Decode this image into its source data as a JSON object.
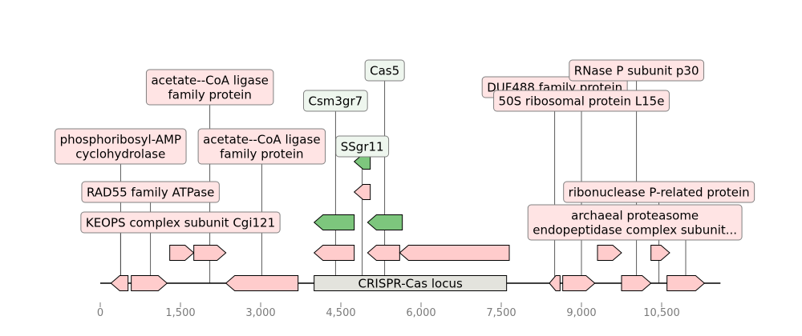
{
  "chart_data": {
    "type": "gene-map",
    "title": "",
    "axis": {
      "min": 0,
      "max": 11600,
      "ticks": [
        0,
        1500,
        3000,
        4500,
        6000,
        7500,
        9000,
        10500
      ],
      "tick_labels": [
        "0",
        "1,500",
        "3,000",
        "4,500",
        "6,000",
        "7,500",
        "9,000",
        "10,500"
      ]
    },
    "colors": {
      "gene_pink": "#ffcccc",
      "gene_green": "#7dc67d",
      "label_pink": "#ffe4e4",
      "label_green": "#eef6ee",
      "locus_box": "#e3e3dd"
    },
    "locus": {
      "label": "CRISPR-Cas locus",
      "start": 4000,
      "end": 7600
    },
    "genes": [
      {
        "start": 200,
        "end": 520,
        "strand": -1,
        "track": 0,
        "color": "pink"
      },
      {
        "start": 580,
        "end": 1250,
        "strand": 1,
        "track": 0,
        "color": "pink"
      },
      {
        "start": 2350,
        "end": 3700,
        "strand": -1,
        "track": 0,
        "color": "pink"
      },
      {
        "start": 8400,
        "end": 8600,
        "strand": -1,
        "track": 0,
        "color": "pink"
      },
      {
        "start": 8650,
        "end": 9250,
        "strand": 1,
        "track": 0,
        "color": "pink"
      },
      {
        "start": 9750,
        "end": 10300,
        "strand": 1,
        "track": 0,
        "color": "pink"
      },
      {
        "start": 10600,
        "end": 11300,
        "strand": 1,
        "track": 0,
        "color": "pink"
      },
      {
        "start": 1300,
        "end": 1750,
        "strand": 1,
        "track": 1,
        "color": "pink"
      },
      {
        "start": 1750,
        "end": 2350,
        "strand": 1,
        "track": 1,
        "color": "pink"
      },
      {
        "start": 4000,
        "end": 4750,
        "strand": -1,
        "track": 1,
        "color": "pink"
      },
      {
        "start": 5000,
        "end": 5600,
        "strand": -1,
        "track": 1,
        "color": "pink"
      },
      {
        "start": 5600,
        "end": 7650,
        "strand": -1,
        "track": 1,
        "color": "pink"
      },
      {
        "start": 9300,
        "end": 9750,
        "strand": 1,
        "track": 1,
        "color": "pink"
      },
      {
        "start": 10300,
        "end": 10650,
        "strand": 1,
        "track": 1,
        "color": "pink"
      },
      {
        "start": 4000,
        "end": 4750,
        "strand": -1,
        "track": 2,
        "color": "green"
      },
      {
        "start": 5000,
        "end": 5650,
        "strand": -1,
        "track": 2,
        "color": "green"
      },
      {
        "start": 4750,
        "end": 5050,
        "strand": -1,
        "track": 3,
        "color": "pink"
      },
      {
        "start": 4750,
        "end": 5050,
        "strand": -1,
        "track": 4,
        "color": "green"
      }
    ],
    "annotations": [
      {
        "text": "KEOPS complex subunit Cgi121",
        "x": 380,
        "box_center": 1500,
        "level": 0,
        "color": "pink"
      },
      {
        "text": "RAD55 family ATPase",
        "x": 940,
        "box_center": 940,
        "level": 1,
        "color": "pink"
      },
      {
        "text": "phosphoribosyl-AMP\ncyclohydrolase",
        "x": 380,
        "box_center": 380,
        "level": 2,
        "color": "pink"
      },
      {
        "text": "acetate--CoA ligase\nfamily protein",
        "x": 3020,
        "box_center": 3020,
        "level": 2,
        "color": "pink"
      },
      {
        "text": "acetate--CoA ligase\nfamily protein",
        "x": 2050,
        "box_center": 2050,
        "level": 4,
        "color": "pink"
      },
      {
        "text": "Csm3gr7",
        "x": 4400,
        "box_center": 4400,
        "level": 3,
        "color": "green"
      },
      {
        "text": "SSgr11",
        "x": 4900,
        "box_center": 4900,
        "level": 2,
        "color": "green"
      },
      {
        "text": "Cas5",
        "x": 5320,
        "box_center": 5320,
        "level": 5,
        "color": "green"
      },
      {
        "text": "DUF488 family protein",
        "x": 8500,
        "box_center": 8500,
        "level": 4,
        "color": "pink"
      },
      {
        "text": "50S ribosomal protein L15e",
        "x": 9000,
        "box_center": 9000,
        "level": 3,
        "color": "pink"
      },
      {
        "text": "RNase P subunit p30",
        "x": 10030,
        "box_center": 10030,
        "level": 5,
        "color": "pink"
      },
      {
        "text": "ribonuclease P-related protein",
        "x": 10450,
        "box_center": 10450,
        "level": 1,
        "color": "pink"
      },
      {
        "text": "archaeal proteasome\nendopeptidase complex subunit...",
        "x": 10950,
        "box_center": 10000,
        "level": 0,
        "color": "pink"
      }
    ]
  }
}
